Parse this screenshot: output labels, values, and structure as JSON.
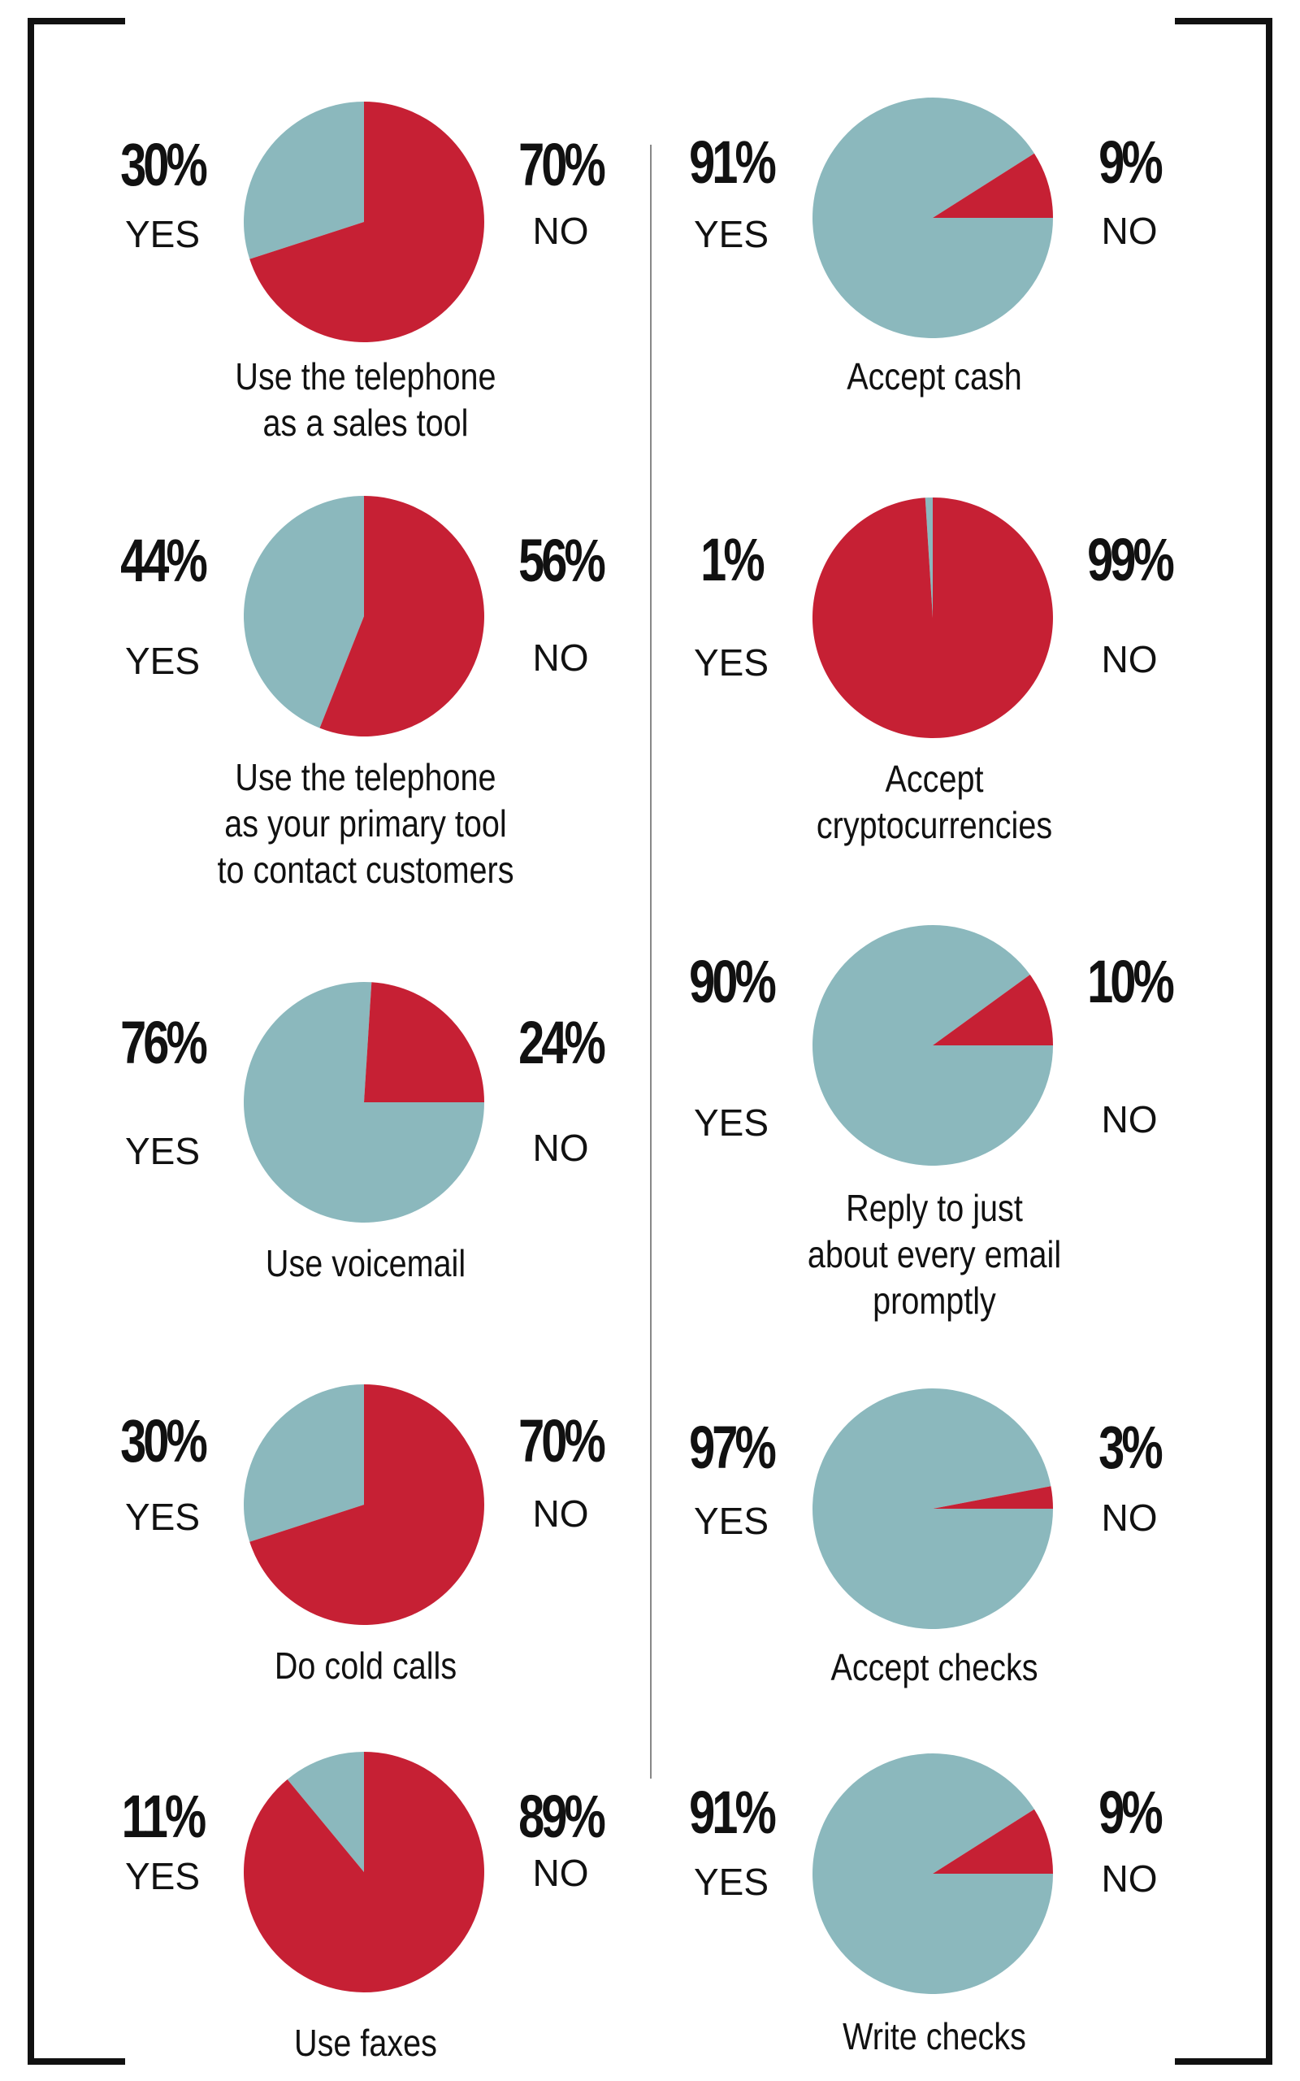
{
  "colors": {
    "yes": "#8bb8bd",
    "no": "#c62034",
    "frame": "#111111",
    "divider": "#888888"
  },
  "chart_data": [
    {
      "type": "pie",
      "title": "Use the telephone as a sales tool",
      "title_lines": [
        "Use the telephone",
        "as a sales tool"
      ],
      "categories": [
        "YES",
        "NO"
      ],
      "values": [
        30,
        70
      ],
      "yes_text": "30%",
      "no_text": "70%",
      "yes_label": "YES",
      "no_label": "NO"
    },
    {
      "type": "pie",
      "title": "Use the telephone as your primary tool to contact customers",
      "title_lines": [
        "Use the telephone",
        "as your primary tool",
        "to contact customers"
      ],
      "categories": [
        "YES",
        "NO"
      ],
      "values": [
        44,
        56
      ],
      "yes_text": "44%",
      "no_text": "56%",
      "yes_label": "YES",
      "no_label": "NO"
    },
    {
      "type": "pie",
      "title": "Use voicemail",
      "title_lines": [
        "Use voicemail"
      ],
      "categories": [
        "YES",
        "NO"
      ],
      "values": [
        76,
        24
      ],
      "yes_text": "76%",
      "no_text": "24%",
      "yes_label": "YES",
      "no_label": "NO"
    },
    {
      "type": "pie",
      "title": "Do cold calls",
      "title_lines": [
        "Do cold calls"
      ],
      "categories": [
        "YES",
        "NO"
      ],
      "values": [
        30,
        70
      ],
      "yes_text": "30%",
      "no_text": "70%",
      "yes_label": "YES",
      "no_label": "NO"
    },
    {
      "type": "pie",
      "title": "Use faxes",
      "title_lines": [
        "Use faxes"
      ],
      "categories": [
        "YES",
        "NO"
      ],
      "values": [
        11,
        89
      ],
      "yes_text": "11%",
      "no_text": "89%",
      "yes_label": "YES",
      "no_label": "NO"
    },
    {
      "type": "pie",
      "title": "Accept cash",
      "title_lines": [
        "Accept cash"
      ],
      "categories": [
        "YES",
        "NO"
      ],
      "values": [
        91,
        9
      ],
      "yes_text": "91%",
      "no_text": "9%",
      "yes_label": "YES",
      "no_label": "NO"
    },
    {
      "type": "pie",
      "title": "Accept cryptocurrencies",
      "title_lines": [
        "Accept",
        "cryptocurrencies"
      ],
      "categories": [
        "YES",
        "NO"
      ],
      "values": [
        1,
        99
      ],
      "yes_text": "1%",
      "no_text": "99%",
      "yes_label": "YES",
      "no_label": "NO"
    },
    {
      "type": "pie",
      "title": "Reply to just about every email promptly",
      "title_lines": [
        "Reply to just",
        "about every email",
        "promptly"
      ],
      "categories": [
        "YES",
        "NO"
      ],
      "values": [
        90,
        10
      ],
      "yes_text": "90%",
      "no_text": "10%",
      "yes_label": "YES",
      "no_label": "NO"
    },
    {
      "type": "pie",
      "title": "Accept checks",
      "title_lines": [
        "Accept checks"
      ],
      "categories": [
        "YES",
        "NO"
      ],
      "values": [
        97,
        3
      ],
      "yes_text": "97%",
      "no_text": "3%",
      "yes_label": "YES",
      "no_label": "NO"
    },
    {
      "type": "pie",
      "title": "Write checks",
      "title_lines": [
        "Write checks"
      ],
      "categories": [
        "YES",
        "NO"
      ],
      "values": [
        91,
        9
      ],
      "yes_text": "91%",
      "no_text": "9%",
      "yes_label": "YES",
      "no_label": "NO"
    }
  ]
}
